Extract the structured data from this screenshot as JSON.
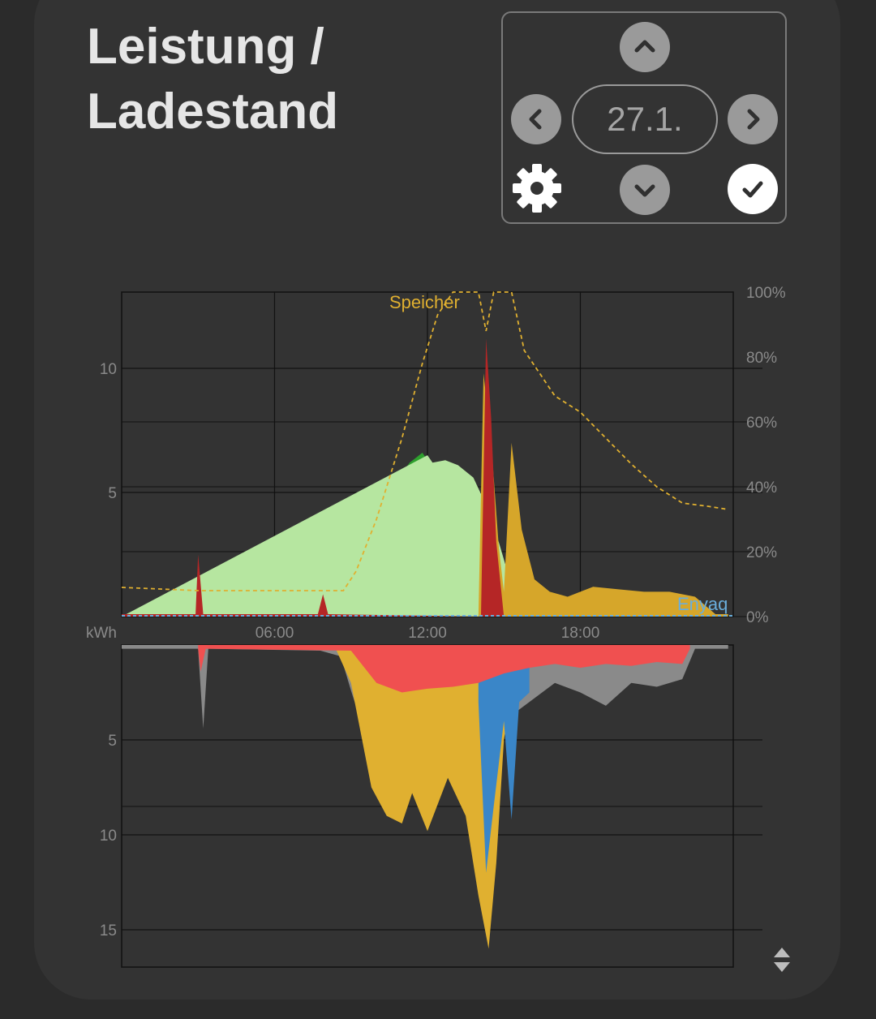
{
  "card": {
    "title_line1": "Leistung /",
    "title_line2": "Ladestand"
  },
  "date_nav": {
    "date_label": "27.1.",
    "icons": [
      "chevron-up-icon",
      "chevron-left-icon",
      "chevron-right-icon",
      "chevron-down-icon",
      "gear-icon",
      "check-icon"
    ]
  },
  "chart_data": [
    {
      "type": "area",
      "x_ticks": [
        "06:00",
        "12:00",
        "18:00"
      ],
      "x_range": [
        "00:00",
        "24:00"
      ],
      "y_ticks_left": [
        "5",
        "10"
      ],
      "y_ticks_right": [
        "100%",
        "80%",
        "60%",
        "40%",
        "20%",
        "0%"
      ],
      "ylim": [
        0,
        13
      ],
      "y2lim": [
        0,
        100
      ],
      "grid": true,
      "series": [
        {
          "name": "Speicher",
          "type": "dashed-line",
          "axis": "right",
          "color": "#e0b030",
          "x": [
            0,
            3,
            8.7,
            9.2,
            10,
            11,
            11.8,
            12.4,
            13,
            14,
            14.3,
            14.6,
            15.3,
            15.8,
            17,
            18,
            19,
            20,
            21,
            22,
            23,
            23.8
          ],
          "values": [
            9,
            8,
            8,
            14,
            30,
            55,
            78,
            93,
            100,
            100,
            88,
            100,
            100,
            82,
            68,
            63,
            55,
            47,
            40,
            35,
            34,
            33
          ]
        },
        {
          "name": "Enyaq",
          "type": "line",
          "axis": "left",
          "color": "#6aaedc",
          "x": [
            0,
            24
          ],
          "values": [
            0,
            0
          ]
        },
        {
          "name": "",
          "color": "#2ea02e",
          "x": [
            0,
            8.8,
            9.3,
            9.8,
            10.2,
            10.8,
            11.3,
            11.8,
            12.2,
            12.7,
            13.2,
            13.8,
            14.3,
            14.8,
            15.2,
            15.5,
            16.0
          ],
          "values": [
            0,
            0,
            0.8,
            2.8,
            4.4,
            5.5,
            6.2,
            6.6,
            6.0,
            4.0,
            3.5,
            4.0,
            3.2,
            2.0,
            0.8,
            0.3,
            0
          ]
        },
        {
          "name": "",
          "color": "#b6e6a0",
          "x": [
            0,
            12.0,
            12.2,
            12.7,
            13.2,
            13.8,
            14.3,
            14.8,
            15.2,
            15.6,
            16.2
          ],
          "values": [
            0,
            6.5,
            6.2,
            6.3,
            6.1,
            5.6,
            4.5,
            3.0,
            1.6,
            0.6,
            0
          ]
        },
        {
          "name": "",
          "color": "#d6a62a",
          "x": [
            0,
            14.0,
            14.2,
            14.5,
            14.8,
            15.0,
            15.3,
            15.7,
            16.2,
            16.8,
            17.5,
            18.5,
            19.5,
            20.5,
            21.5,
            22.5,
            23.3,
            23.8
          ],
          "values": [
            0,
            0,
            9.8,
            7.0,
            2.8,
            1.0,
            7.0,
            3.5,
            1.5,
            1.0,
            0.8,
            1.2,
            1.1,
            1.0,
            1.0,
            0.8,
            0.1,
            0.1
          ]
        },
        {
          "name": "",
          "color": "#b52626",
          "x": [
            0,
            2.9,
            3.0,
            3.2,
            7.7,
            7.9,
            8.1,
            14.1,
            14.3,
            14.5,
            14.7,
            15.0
          ],
          "values": [
            0.1,
            0.1,
            2.5,
            0.1,
            0.1,
            0.9,
            0.1,
            0,
            11.2,
            8.0,
            3.0,
            0
          ]
        }
      ]
    },
    {
      "type": "area",
      "x_range": [
        "00:00",
        "24:00"
      ],
      "ylabel": "kWh",
      "y_ticks_left": [
        "5",
        "10",
        "15"
      ],
      "ylim": [
        0,
        17
      ],
      "inverted": true,
      "grid": true,
      "series": [
        {
          "name": "",
          "color": "#8a8a8a",
          "x": [
            0,
            3.0,
            3.2,
            3.4,
            7.8,
            8.6,
            9.0,
            10.0,
            10.6,
            11.0,
            11.6,
            12.0,
            12.6,
            13.2,
            13.6,
            14.0,
            15.0,
            16.0,
            17.0,
            18.0,
            19.0,
            20.0,
            21.0,
            22.0,
            22.5,
            23.8
          ],
          "values": [
            0.2,
            0.2,
            4.4,
            0.2,
            0.3,
            0.6,
            2.4,
            6.6,
            7.3,
            8.1,
            6.4,
            5.4,
            6.4,
            7.7,
            5.2,
            3.8,
            4.0,
            3.0,
            2.0,
            2.5,
            3.2,
            2.0,
            2.2,
            1.8,
            0.2,
            0.2
          ]
        },
        {
          "name": "",
          "color": "#e0b030",
          "x": [
            8.4,
            9.0,
            9.8,
            10.4,
            11.0,
            11.4,
            12.0,
            12.8,
            13.5,
            14.0,
            14.4,
            14.7,
            15.0,
            15.3
          ],
          "values": [
            0.2,
            2.0,
            7.5,
            9.0,
            9.4,
            7.8,
            9.8,
            7.0,
            9.0,
            13.2,
            16.0,
            11.5,
            5.0,
            2.5
          ]
        },
        {
          "name": "",
          "color": "#3a86c8",
          "x": [
            14.0,
            14.3,
            14.6,
            15.0,
            15.3,
            15.6,
            16.0
          ],
          "values": [
            3.0,
            12.0,
            8.5,
            4.0,
            9.2,
            3.0,
            2.5
          ]
        },
        {
          "name": "",
          "color": "#f05050",
          "x": [
            3.0,
            3.1,
            3.3,
            9.0,
            10.0,
            11.0,
            12.0,
            13.0,
            14.0,
            15.0,
            16.0,
            17.0,
            18.0,
            19.0,
            20.0,
            21.0,
            22.0,
            22.3
          ],
          "values": [
            0.2,
            1.4,
            0.2,
            0.3,
            2.0,
            2.5,
            2.3,
            2.2,
            2.0,
            1.5,
            1.2,
            1.0,
            1.2,
            1.0,
            1.1,
            0.9,
            1.0,
            0.2
          ]
        }
      ]
    }
  ]
}
